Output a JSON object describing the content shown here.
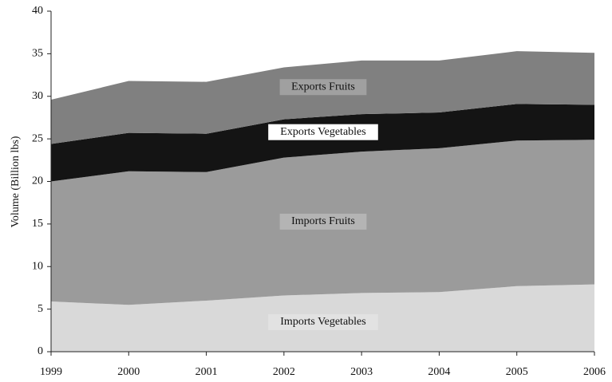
{
  "chart_data": {
    "type": "stacked_area",
    "y_label": "Volume (Billion lbs)",
    "categories": [
      "1999",
      "2000",
      "2001",
      "2002",
      "2003",
      "2004",
      "2005",
      "2006"
    ],
    "series": [
      {
        "name": "Imports Vegetables",
        "color": "#d9d9d9",
        "values": [
          5.9,
          5.5,
          6.0,
          6.6,
          6.9,
          7.0,
          7.7,
          7.9
        ]
      },
      {
        "name": "Imports Fruits",
        "color": "#9b9b9b",
        "values": [
          14.1,
          15.7,
          15.1,
          16.2,
          16.6,
          16.9,
          17.1,
          17.0
        ]
      },
      {
        "name": "Exports Vegetables",
        "color": "#141414",
        "values": [
          4.4,
          4.5,
          4.5,
          4.5,
          4.4,
          4.2,
          4.3,
          4.1
        ]
      },
      {
        "name": "Exports Fruits",
        "color": "#808080",
        "values": [
          5.2,
          6.1,
          6.1,
          6.1,
          6.3,
          6.1,
          6.2,
          6.1
        ]
      }
    ],
    "ylim": [
      0,
      40
    ],
    "yticks": [
      0,
      5,
      10,
      15,
      20,
      25,
      30,
      35,
      40
    ]
  }
}
